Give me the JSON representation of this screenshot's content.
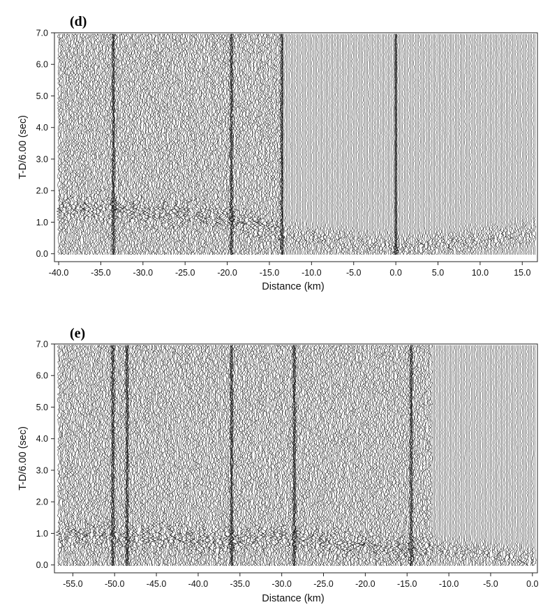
{
  "chart_data": [
    {
      "type": "seismic-record-section",
      "panel_label": "(d)",
      "xlabel": "Distance (km)",
      "ylabel": "T-D/6.00 (sec)",
      "xlim": [
        -40.5,
        16.8
      ],
      "ylim": [
        -0.25,
        7.0
      ],
      "x_ticks": [
        -40,
        -35,
        -30,
        -25,
        -20,
        -15,
        -10,
        -5,
        0,
        5,
        10,
        15
      ],
      "x_tick_labels": [
        "-40.0",
        "-35.0",
        "-30.0",
        "-25.0",
        "-20.0",
        "-15.0",
        "-10.0",
        "-5.0",
        "0.0",
        "5.0",
        "10.0",
        "15.0"
      ],
      "y_ticks": [
        0,
        1,
        2,
        3,
        4,
        5,
        6,
        7
      ],
      "y_tick_labels": [
        "0.0",
        "1.0",
        "2.0",
        "3.0",
        "4.0",
        "5.0",
        "6.0",
        "7.0"
      ],
      "first_arrival": {
        "x": [
          -40,
          -30,
          -20,
          -15,
          -13.5,
          -10,
          -5,
          -1,
          0,
          2,
          5,
          10,
          15,
          16.5
        ],
        "t": [
          1.45,
          1.35,
          1.1,
          0.85,
          0.6,
          0.45,
          0.3,
          0.2,
          0.15,
          0.2,
          0.3,
          0.4,
          0.6,
          0.65
        ]
      },
      "dense_zones": [
        [
          -40,
          -13.5
        ]
      ],
      "heavy_traces": [
        -33.5,
        -19.5,
        -13.5,
        0.0
      ]
    },
    {
      "type": "seismic-record-section",
      "panel_label": "(e)",
      "xlabel": "Distance (km)",
      "ylabel": "T-D/6.00 (sec)",
      "xlim": [
        -57.2,
        0.6
      ],
      "ylim": [
        -0.25,
        7.0
      ],
      "x_ticks": [
        -55,
        -50,
        -45,
        -40,
        -35,
        -30,
        -25,
        -20,
        -15,
        -10,
        -5,
        0
      ],
      "x_tick_labels": [
        "-55.0",
        "-50.0",
        "-45.0",
        "-40.0",
        "-35.0",
        "-30.0",
        "-25.0",
        "-20.0",
        "-15.0",
        "-10.0",
        "-5.0",
        "0.0"
      ],
      "y_ticks": [
        0,
        1,
        2,
        3,
        4,
        5,
        6,
        7
      ],
      "y_tick_labels": [
        "0.0",
        "1.0",
        "2.0",
        "3.0",
        "4.0",
        "5.0",
        "6.0",
        "7.0"
      ],
      "first_arrival": {
        "x": [
          -57,
          -50,
          -45,
          -40,
          -35,
          -30,
          -25,
          -20,
          -15,
          -10,
          -5,
          -2,
          0
        ],
        "t": [
          1.0,
          0.9,
          0.85,
          0.8,
          0.75,
          0.9,
          0.7,
          0.6,
          0.45,
          0.4,
          0.3,
          0.2,
          0.15
        ]
      },
      "dense_zones": [
        [
          -57,
          -12
        ]
      ],
      "heavy_traces": [
        -50.2,
        -48.5,
        -36.0,
        -28.5,
        -14.5
      ]
    }
  ]
}
